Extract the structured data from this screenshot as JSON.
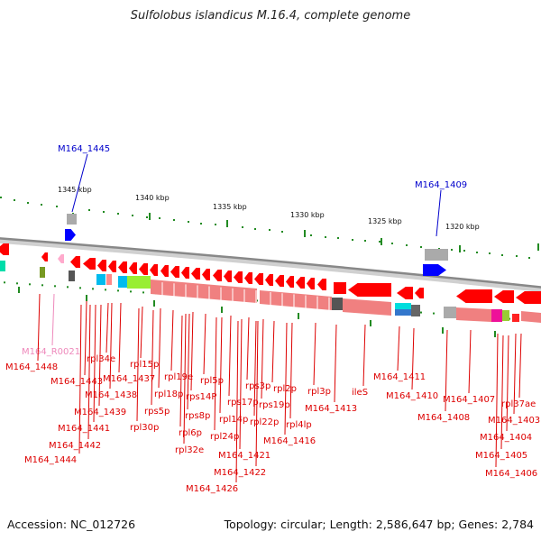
{
  "title": "Sulfolobus islandicus M.16.4, complete genome",
  "footer": {
    "accession": "Accession: NC_012726",
    "topology": "Topology: circular; Length: 2,586,647 bp; Genes: 2,784"
  },
  "colors": {
    "backbone": "#888888",
    "red_gene": "#ff0000",
    "pink_gene": "#f08080",
    "blue_gene": "#0000ff",
    "gray_gene": "#aaaaaa",
    "label_red": "#dd0000",
    "label_blue": "#0000cc",
    "label_pink": "#ee88bb",
    "tick_green": "#228b22"
  },
  "scale_ticks": [
    "1345 kbp",
    "1340 kbp",
    "1335 kbp",
    "1330 kbp",
    "1325 kbp",
    "1320 kbp"
  ],
  "top_labels": [
    {
      "text": "M164_1445",
      "color": "blue"
    },
    {
      "text": "M164_1409",
      "color": "blue"
    }
  ],
  "gene_labels": [
    {
      "text": "M164_R0021",
      "color": "pink"
    },
    {
      "text": "M164_1448",
      "color": "red"
    },
    {
      "text": "rpl34e",
      "color": "red"
    },
    {
      "text": "M164_1443",
      "color": "red"
    },
    {
      "text": "M164_1437",
      "color": "red"
    },
    {
      "text": "rpl15p",
      "color": "red"
    },
    {
      "text": "M164_1438",
      "color": "red"
    },
    {
      "text": "rpl18p",
      "color": "red"
    },
    {
      "text": "rpl19e",
      "color": "red"
    },
    {
      "text": "M164_1439",
      "color": "red"
    },
    {
      "text": "rps5p",
      "color": "red"
    },
    {
      "text": "rps14P",
      "color": "red"
    },
    {
      "text": "rpl5p",
      "color": "red"
    },
    {
      "text": "rps8p",
      "color": "red"
    },
    {
      "text": "rpl30p",
      "color": "red"
    },
    {
      "text": "rpl6p",
      "color": "red"
    },
    {
      "text": "rps17p",
      "color": "red"
    },
    {
      "text": "rpl14p",
      "color": "red"
    },
    {
      "text": "rps3p",
      "color": "red"
    },
    {
      "text": "rpl2p",
      "color": "red"
    },
    {
      "text": "rps19p",
      "color": "red"
    },
    {
      "text": "rpl22p",
      "color": "red"
    },
    {
      "text": "rpl3p",
      "color": "red"
    },
    {
      "text": "rpl4lp",
      "color": "red"
    },
    {
      "text": "ileS",
      "color": "red"
    },
    {
      "text": "M164_1411",
      "color": "red"
    },
    {
      "text": "M164_1410",
      "color": "red"
    },
    {
      "text": "M164_1413",
      "color": "red"
    },
    {
      "text": "M164_1441",
      "color": "red"
    },
    {
      "text": "M164_1442",
      "color": "red"
    },
    {
      "text": "M164_1444",
      "color": "red"
    },
    {
      "text": "rpl32e",
      "color": "red"
    },
    {
      "text": "rpl24p",
      "color": "red"
    },
    {
      "text": "M164_1421",
      "color": "red"
    },
    {
      "text": "M164_1416",
      "color": "red"
    },
    {
      "text": "M164_1422",
      "color": "red"
    },
    {
      "text": "M164_1426",
      "color": "red"
    },
    {
      "text": "M164_1407",
      "color": "red"
    },
    {
      "text": "M164_1408",
      "color": "red"
    },
    {
      "text": "rpl37ae",
      "color": "red"
    },
    {
      "text": "M164_1403",
      "color": "red"
    },
    {
      "text": "M164_1404",
      "color": "red"
    },
    {
      "text": "M164_1405",
      "color": "red"
    },
    {
      "text": "M164_1406",
      "color": "red"
    }
  ]
}
